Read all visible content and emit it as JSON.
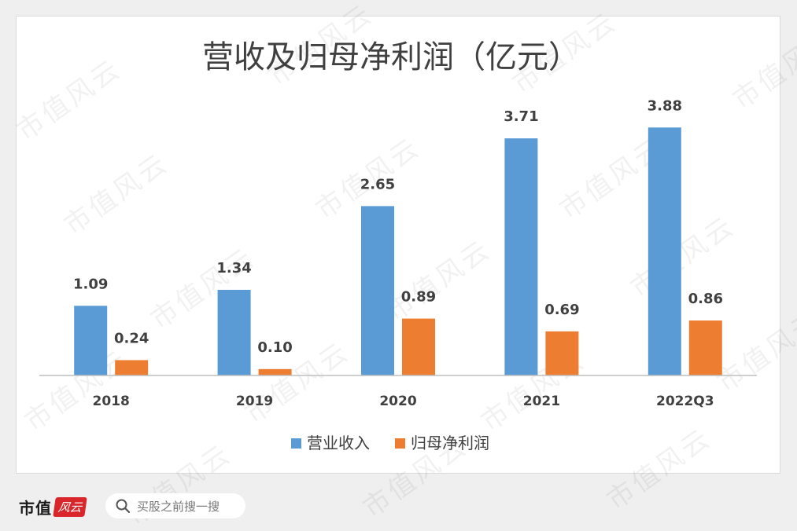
{
  "chart_data": {
    "type": "bar",
    "title": "营收及归母净利润（亿元）",
    "categories": [
      "2018",
      "2019",
      "2020",
      "2021",
      "2022Q3"
    ],
    "series": [
      {
        "name": "营业收入",
        "color": "#5b9bd5",
        "values": [
          1.09,
          1.34,
          2.65,
          3.71,
          3.88
        ]
      },
      {
        "name": "归母净利润",
        "color": "#ed7d31",
        "values": [
          0.24,
          0.1,
          0.89,
          0.69,
          0.86
        ]
      }
    ],
    "ylim": [
      0,
      4.4
    ],
    "grid": false,
    "legend": "bottom"
  },
  "watermark": "市值风云",
  "footer": {
    "brand": "市值",
    "brand_badge": "风云",
    "search_placeholder": "买股之前搜一搜"
  }
}
